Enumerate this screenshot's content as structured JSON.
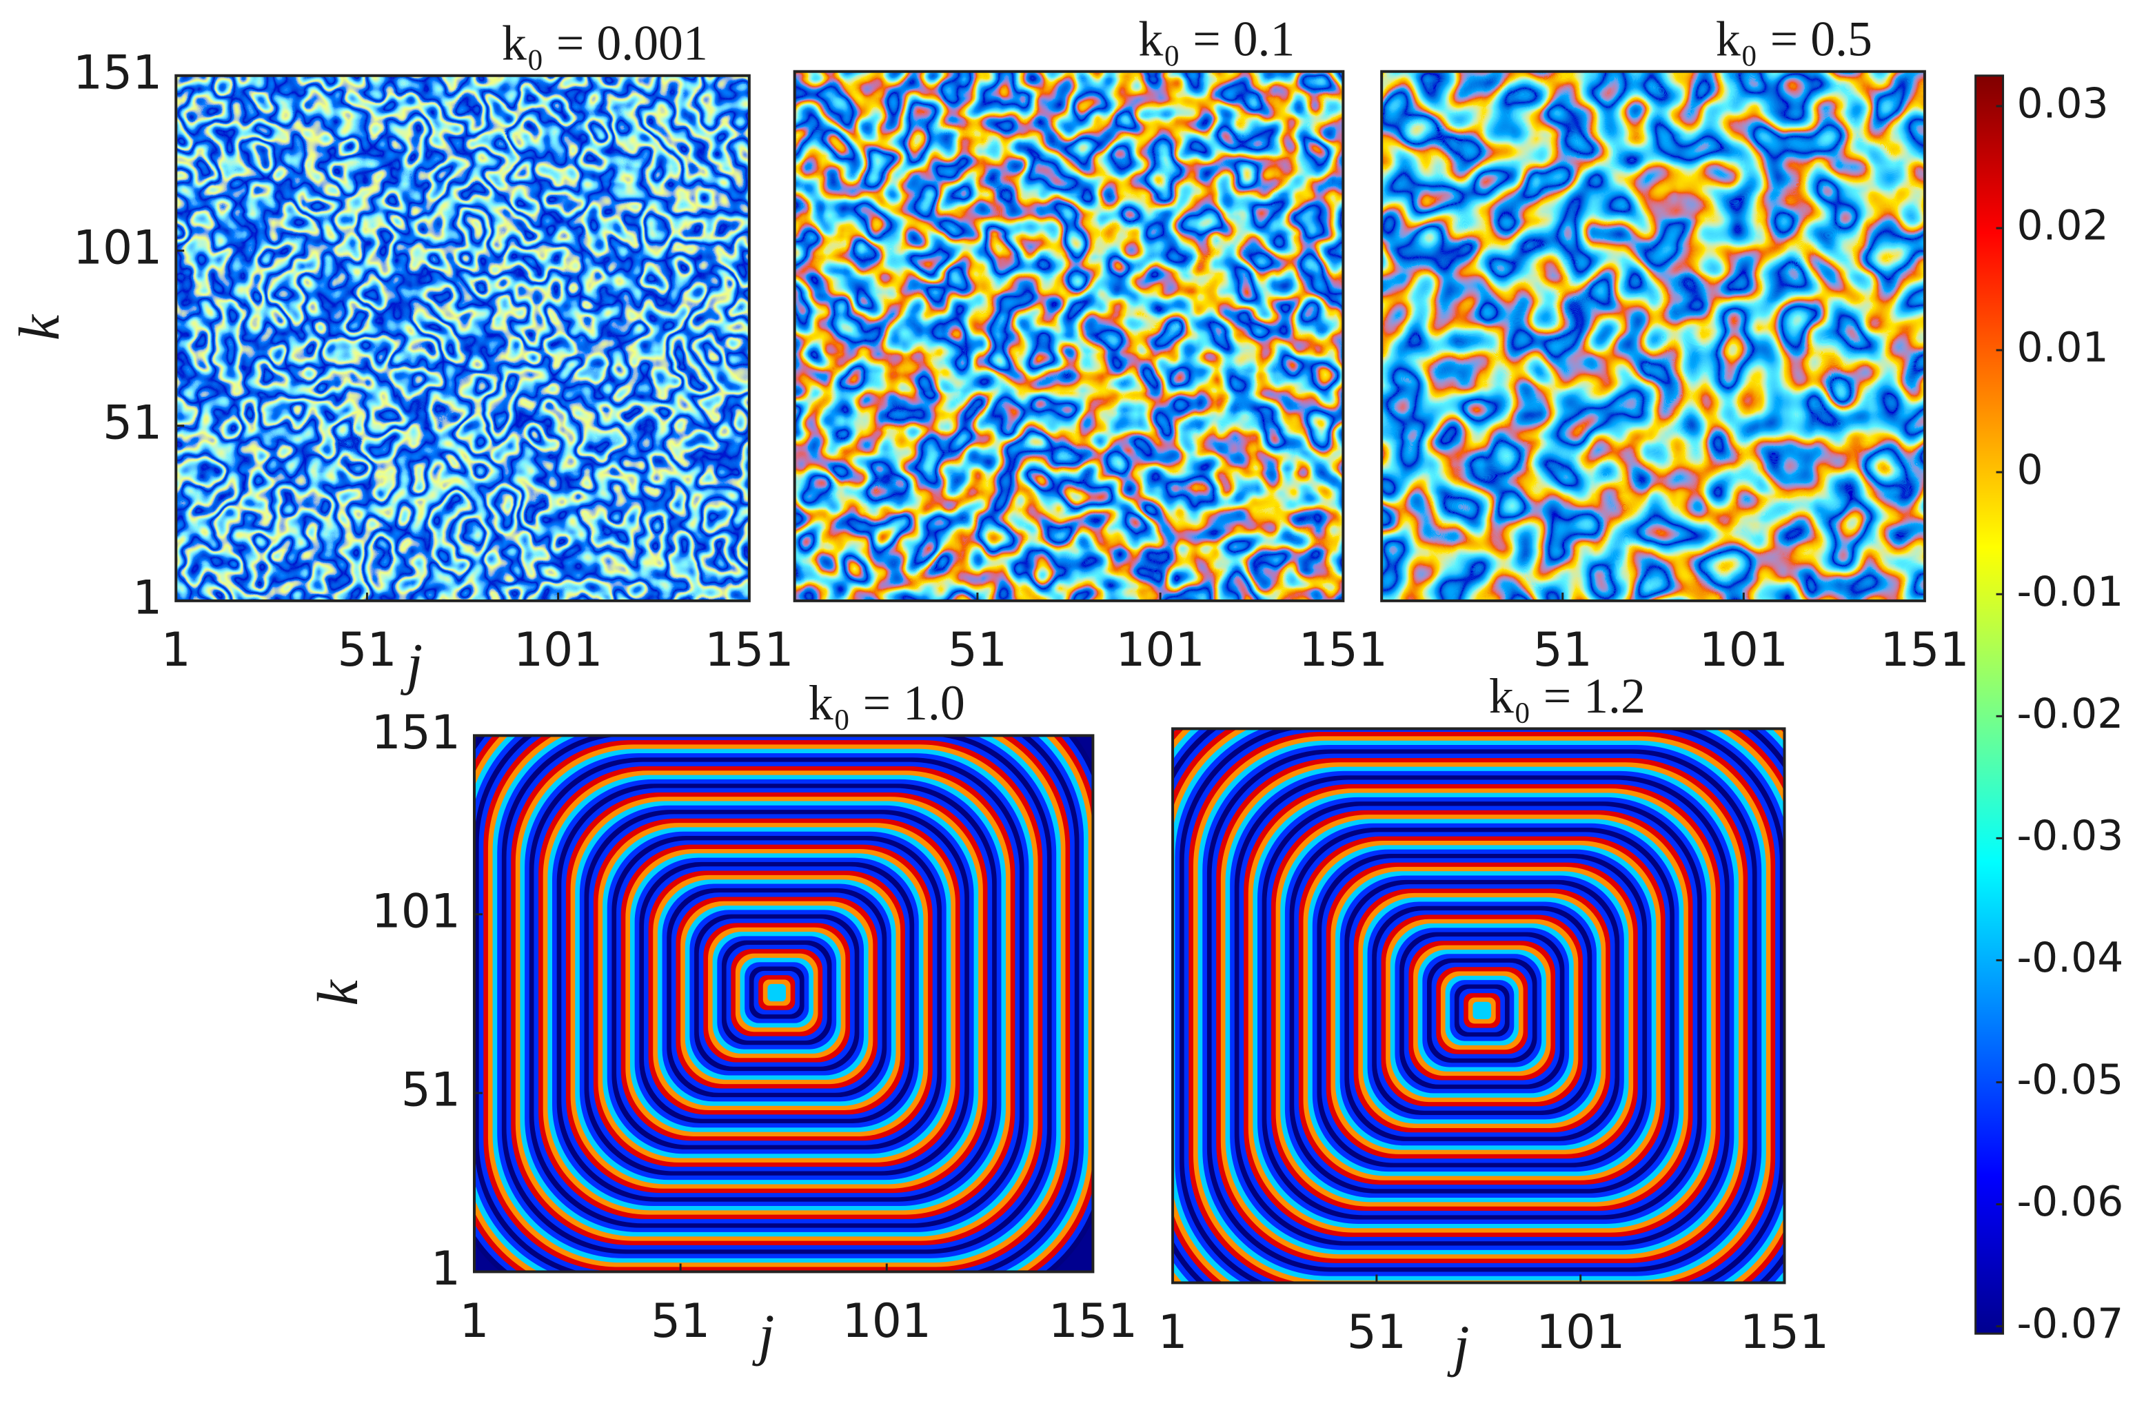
{
  "chart_data": [
    {
      "type": "heatmap",
      "title": "k₀ = 0.001",
      "xlabel": "j",
      "ylabel": "k",
      "xlim": [
        1,
        151
      ],
      "ylim": [
        1,
        151
      ],
      "xticks": [
        1,
        51,
        101,
        151
      ],
      "yticks": [
        1,
        51,
        101,
        151
      ]
    },
    {
      "type": "heatmap",
      "title": "k₀ = 0.1",
      "xlim": [
        1,
        151
      ],
      "ylim": [
        1,
        151
      ],
      "xticks": [
        51,
        101,
        151
      ]
    },
    {
      "type": "heatmap",
      "title": "k₀ = 0.5",
      "xlim": [
        1,
        151
      ],
      "ylim": [
        1,
        151
      ],
      "xticks": [
        51,
        101,
        151
      ]
    },
    {
      "type": "heatmap",
      "title": "k₀ = 1.0",
      "xlabel": "j",
      "ylabel": "k",
      "xlim": [
        1,
        151
      ],
      "ylim": [
        1,
        151
      ],
      "xticks": [
        1,
        51,
        101,
        151
      ],
      "yticks": [
        1,
        51,
        101,
        151
      ]
    },
    {
      "type": "heatmap",
      "title": "k₀ = 1.2",
      "xlabel": "j",
      "xlim": [
        1,
        151
      ],
      "ylim": [
        1,
        151
      ],
      "xticks": [
        1,
        51,
        101,
        151
      ]
    }
  ],
  "colorbar": {
    "colormap": "jet",
    "lim": [
      -0.0706,
      0.0325
    ],
    "ticks": [
      -0.07,
      -0.06,
      -0.05,
      -0.04,
      -0.03,
      -0.02,
      -0.01,
      0,
      0.01,
      0.02,
      0.03
    ]
  }
}
